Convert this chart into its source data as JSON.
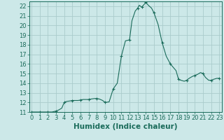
{
  "x": [
    0,
    0.5,
    1,
    1.5,
    2,
    2.5,
    3,
    3.3,
    3.7,
    4,
    4.3,
    4.7,
    5,
    5.3,
    5.7,
    6,
    6.3,
    6.7,
    7,
    7.3,
    7.7,
    8,
    8.3,
    8.7,
    9,
    9.5,
    10,
    10.5,
    11,
    11.5,
    12,
    12.3,
    12.7,
    13,
    13.2,
    13.5,
    14,
    14.3,
    14.7,
    15,
    15.5,
    16,
    16.5,
    17,
    17.3,
    17.7,
    18,
    18.3,
    18.7,
    19,
    19.3,
    19.7,
    20,
    20.3,
    20.7,
    21,
    21.3,
    21.7,
    22,
    22.3,
    22.7,
    23
  ],
  "y": [
    11,
    11,
    11,
    11,
    11,
    11,
    11.1,
    11.2,
    11.4,
    12.0,
    12.1,
    12.15,
    12.2,
    12.2,
    12.2,
    12.25,
    12.3,
    12.3,
    12.3,
    12.35,
    12.4,
    12.4,
    12.35,
    12.2,
    12.0,
    12.05,
    13.4,
    14.0,
    16.8,
    18.4,
    18.5,
    20.5,
    21.5,
    21.8,
    22.1,
    21.9,
    22.4,
    22.1,
    21.8,
    21.3,
    20.1,
    18.2,
    16.8,
    16.0,
    15.7,
    15.3,
    14.4,
    14.3,
    14.2,
    14.3,
    14.5,
    14.7,
    14.8,
    14.9,
    15.1,
    15.0,
    14.6,
    14.3,
    14.3,
    14.4,
    14.5,
    14.5
  ],
  "marker_x": [
    0,
    1,
    2,
    3,
    4,
    5,
    6,
    7,
    8,
    9,
    10,
    11,
    12,
    13,
    13.5,
    14,
    15,
    16,
    17,
    18,
    19,
    20,
    21,
    22,
    23
  ],
  "marker_y": [
    11,
    11,
    11,
    11.1,
    12.0,
    12.2,
    12.25,
    12.3,
    12.4,
    12.0,
    13.4,
    16.8,
    18.5,
    21.8,
    21.9,
    22.4,
    21.3,
    18.2,
    16.0,
    14.4,
    14.3,
    14.8,
    15.0,
    14.3,
    14.5
  ],
  "line_color": "#1a6b5a",
  "marker_color": "#1a6b5a",
  "bg_color": "#cce8e8",
  "grid_color": "#aacccc",
  "xlabel": "Humidex (Indice chaleur)",
  "xlim": [
    -0.3,
    23.3
  ],
  "ylim": [
    11,
    22.5
  ],
  "yticks": [
    11,
    12,
    13,
    14,
    15,
    16,
    17,
    18,
    19,
    20,
    21,
    22
  ],
  "xticks": [
    0,
    1,
    2,
    3,
    4,
    5,
    6,
    7,
    8,
    9,
    10,
    11,
    12,
    13,
    14,
    15,
    16,
    17,
    18,
    19,
    20,
    21,
    22,
    23
  ],
  "tick_label_fontsize": 6,
  "xlabel_fontsize": 7.5
}
